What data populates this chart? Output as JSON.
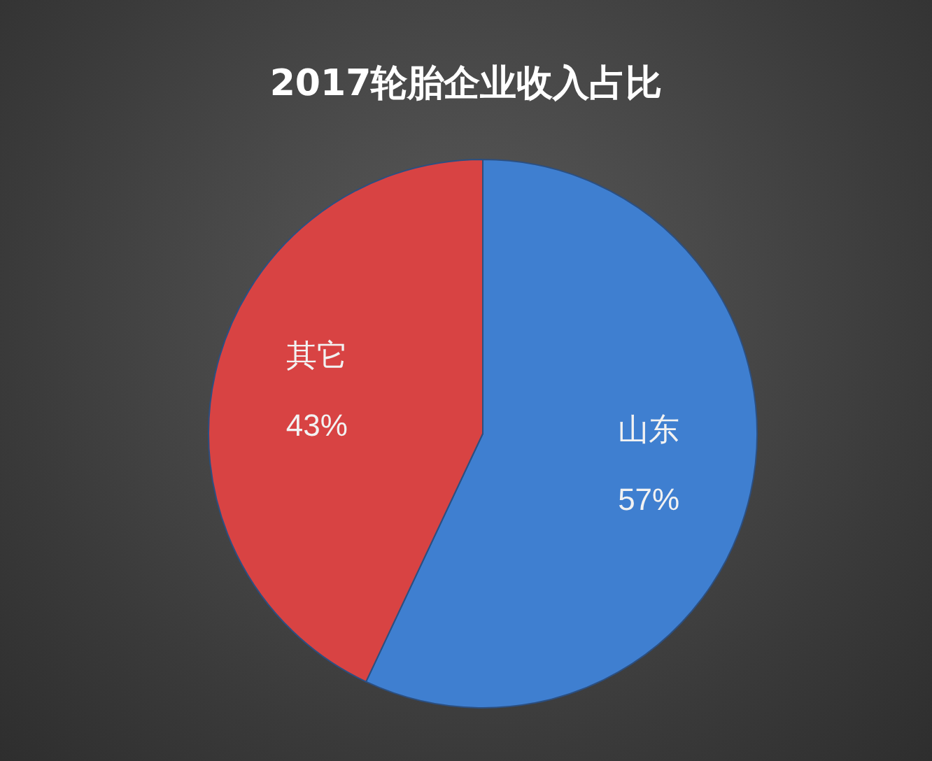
{
  "chart_data": {
    "type": "pie",
    "title": "2017轮胎企业收入占比",
    "categories": [
      "山东",
      "其它"
    ],
    "values": [
      57,
      43
    ],
    "value_labels": [
      "57%",
      "43%"
    ],
    "colors": [
      "#3f7fd0",
      "#d84343"
    ],
    "legend": false
  }
}
